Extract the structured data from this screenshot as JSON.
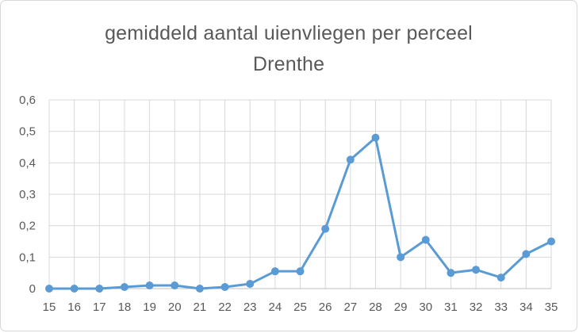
{
  "chart_data": {
    "type": "line",
    "title": "gemiddeld aantal uienvliegen per perceel Drenthe",
    "title_lines": [
      "gemiddeld aantal uienvliegen per perceel",
      "Drenthe"
    ],
    "xlabel": "",
    "ylabel": "",
    "categories": [
      "15",
      "16",
      "17",
      "18",
      "19",
      "20",
      "21",
      "22",
      "23",
      "24",
      "25",
      "26",
      "27",
      "28",
      "29",
      "30",
      "31",
      "32",
      "33",
      "34",
      "35"
    ],
    "series": [
      {
        "name": "gemiddeld aantal uienvliegen per perceel Drenthe",
        "values": [
          0,
          0,
          0,
          0.005,
          0.01,
          0.01,
          0,
          0.005,
          0.015,
          0.055,
          0.055,
          0.19,
          0.41,
          0.48,
          0.1,
          0.155,
          0.05,
          0.06,
          0.035,
          0.11,
          0.15
        ]
      }
    ],
    "ylim": [
      0,
      0.6
    ],
    "ytick_step": 0.1,
    "ytick_labels": [
      "0",
      "0,1",
      "0,2",
      "0,3",
      "0,4",
      "0,5",
      "0,6"
    ],
    "grid": true,
    "legend_position": "none",
    "colors": {
      "line": "#5b9bd5",
      "marker": "#5b9bd5",
      "grid": "#d9d9d9",
      "axis": "#bfbfbf",
      "text": "#595959",
      "title": "#595959",
      "border": "#d7d7d7",
      "background": "#ffffff"
    }
  }
}
